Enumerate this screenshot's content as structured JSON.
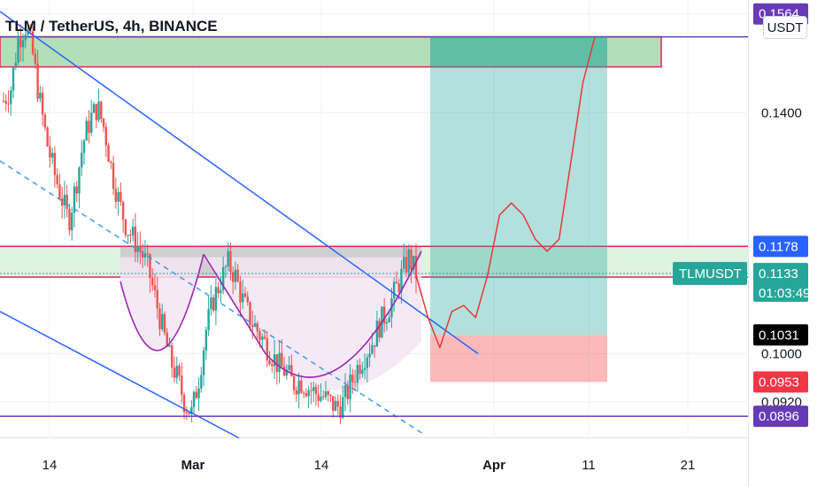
{
  "header": {
    "title": "TLM / TetherUS, 4h, BINANCE",
    "currency_button": "USDT"
  },
  "colors": {
    "bull_candle": "#26a69a",
    "bear_candle": "#ef5350",
    "channel_line": "#2962ff",
    "neckline": "#2962ff",
    "resistance_zone": "#b2dfb7",
    "resistance_zone_border": "#e91e63",
    "cup_fill": "#f3e5f5",
    "cup_line": "#9c27b0",
    "support_line": "#673ab7",
    "target_box": "#26a69a",
    "stop_box": "#ef5350",
    "projection": "#e53935"
  },
  "chart_data": {
    "type": "candlestick",
    "symbol": "TLM / TetherUS",
    "timeframe": "4h",
    "exchange": "BINANCE",
    "x_ticks": [
      "14",
      "Mar",
      "14",
      "Apr",
      "11",
      "21"
    ],
    "y_ticks": [
      0.14,
      0.1,
      0.092
    ],
    "y_tick_labels": [
      "0.1400",
      "0.1000",
      "0.0920"
    ],
    "ylim": [
      0.0858,
      0.1568
    ],
    "price_tags": [
      {
        "value": "0.1564",
        "color": "#673ab7"
      },
      {
        "value": "0.1178",
        "color": "#2962ff"
      },
      {
        "value": "0.1031",
        "color": "#000000"
      },
      {
        "value": "0.0953",
        "color": "#f23645"
      },
      {
        "value": "0.0896",
        "color": "#673ab7"
      }
    ],
    "current": {
      "symbol_tag": "TLMUSDT",
      "price": "0.1133",
      "countdown": "01:03:49",
      "color": "#26a69a"
    },
    "levels": {
      "resistance_top": 0.1526,
      "resistance_bottom": 0.1476,
      "breakout_zone_top": 0.1178,
      "breakout_zone_bottom": 0.1127,
      "support": 0.0896,
      "target": 0.1526,
      "entry": 0.1031,
      "stop": 0.0953
    },
    "price_path": [
      0.142,
      0.144,
      0.152,
      0.1545,
      0.15,
      0.142,
      0.135,
      0.13,
      0.126,
      0.122,
      0.128,
      0.135,
      0.139,
      0.141,
      0.137,
      0.13,
      0.125,
      0.121,
      0.119,
      0.117,
      0.114,
      0.109,
      0.104,
      0.099,
      0.096,
      0.092,
      0.09,
      0.096,
      0.104,
      0.109,
      0.112,
      0.115,
      0.113,
      0.109,
      0.106,
      0.104,
      0.102,
      0.1,
      0.098,
      0.097,
      0.095,
      0.0955,
      0.0945,
      0.0935,
      0.093,
      0.092,
      0.091,
      0.092,
      0.095,
      0.098,
      0.1,
      0.102,
      0.105,
      0.107,
      0.11,
      0.113,
      0.116,
      0.1133
    ],
    "projection": [
      0.113,
      0.106,
      0.101,
      0.107,
      0.108,
      0.106,
      0.113,
      0.123,
      0.125,
      0.123,
      0.119,
      0.117,
      0.119,
      0.132,
      0.145,
      0.1526
    ]
  }
}
